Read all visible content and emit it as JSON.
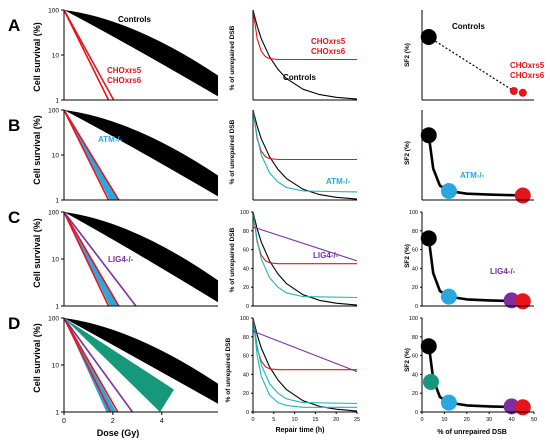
{
  "figure": {
    "rows": [
      {
        "letter": "A",
        "survival_label": "Cell survival (%)",
        "dsb_label": "% of unrepaired DSB",
        "sf2_label": "SF2 (%)"
      },
      {
        "letter": "B",
        "survival_label": "Cell survival (%)",
        "dsb_label": "% of unrepaired DSB",
        "sf2_label": "SF2 (%)"
      },
      {
        "letter": "C",
        "survival_label": "Cell survival (%)",
        "dsb_label": "% of unrepaired DSB",
        "sf2_label": "SF2 (%)"
      },
      {
        "letter": "D",
        "survival_label": "Cell survival (%)",
        "dsb_label": "% of unrepaired DSB",
        "sf2_label": "SF2 (%)"
      }
    ],
    "bottom_xlabels": {
      "survival": "Dose (Gy)",
      "dsb": "Repair time (h)",
      "sf2": "% of unrepaired DSB"
    },
    "labels": {
      "controls": "Controls",
      "chox_a": "CHOxrs5",
      "chox_b": "CHOxrs6",
      "atm": "ATM-/-",
      "lig4": "LIG4-/-"
    },
    "colors": {
      "controls": "#000000",
      "chox": "#e8141c",
      "atm": "#29a8e0",
      "atm_line": "#1fb5b5",
      "lig4": "#7b2fa0",
      "green": "#16987a",
      "black_dot": "#000000"
    }
  },
  "chart_data": [
    {
      "panel": "A-survival",
      "type": "line",
      "yscale": "log",
      "ylim": [
        1,
        100
      ],
      "yticks": [
        1,
        10,
        100
      ],
      "xticks": [],
      "ylabel": "Cell survival (%)",
      "series": [
        {
          "name": "Controls",
          "kind": "band",
          "x": [
            0,
            4.5
          ],
          "y_low": [
            100,
            1.2
          ],
          "y_high": [
            100,
            3.5
          ]
        },
        {
          "name": "CHOxrs5",
          "kind": "line",
          "x": [
            0,
            1.3
          ],
          "y": [
            100,
            1
          ]
        },
        {
          "name": "CHOxrs6",
          "kind": "line",
          "x": [
            0,
            1.45
          ],
          "y": [
            100,
            1
          ]
        }
      ]
    },
    {
      "panel": "A-dsb",
      "type": "line",
      "xlim": [
        0,
        25
      ],
      "ylim": [
        0,
        100
      ],
      "yticks": [],
      "xticks": [],
      "ylabel": "% of unrepaired DSB",
      "series": [
        {
          "name": "Controls",
          "x": [
            0,
            1,
            2,
            4,
            6,
            8,
            12,
            16,
            20,
            25
          ],
          "y": [
            100,
            82,
            68,
            48,
            34,
            24,
            12,
            6,
            3,
            1
          ]
        },
        {
          "name": "CHOxrs5 CHOxrs6",
          "x": [
            0,
            1,
            2,
            3,
            4,
            6,
            10,
            25
          ],
          "y": [
            100,
            68,
            54,
            48,
            46,
            45,
            45,
            45
          ]
        }
      ]
    },
    {
      "panel": "A-sf2",
      "type": "scatter",
      "xlim": [
        0,
        50
      ],
      "ylim": [
        0,
        100
      ],
      "yticks": [],
      "xticks": [],
      "ylabel": "SF2 (%)",
      "points": [
        {
          "name": "Controls",
          "x": 3,
          "y": 70
        },
        {
          "name": "CHOxrs5",
          "x": 41,
          "y": 10
        },
        {
          "name": "CHOxrs6",
          "x": 45,
          "y": 8
        }
      ]
    },
    {
      "panel": "B-survival",
      "type": "line",
      "yscale": "log",
      "ylim": [
        1,
        100
      ],
      "yticks": [
        1,
        10,
        100
      ],
      "xticks": [],
      "ylabel": "Cell survival (%)",
      "series": [
        {
          "name": "Controls",
          "kind": "band",
          "x": [
            0,
            4.5
          ],
          "y_low": [
            100,
            1.2
          ],
          "y_high": [
            100,
            3.5
          ]
        },
        {
          "name": "ATM-/-",
          "kind": "fan",
          "x": [
            0,
            1.6
          ],
          "y": [
            100,
            1
          ]
        },
        {
          "name": "CHOxrs5",
          "kind": "line",
          "x": [
            0,
            1.3
          ],
          "y": [
            100,
            1
          ]
        },
        {
          "name": "CHOxrs6",
          "kind": "line",
          "x": [
            0,
            1.6
          ],
          "y": [
            100,
            1
          ]
        }
      ]
    },
    {
      "panel": "B-dsb",
      "type": "line",
      "xlim": [
        0,
        25
      ],
      "ylim": [
        0,
        100
      ],
      "yticks": [],
      "xticks": [],
      "ylabel": "% of unrepaired DSB",
      "series": [
        {
          "name": "Controls",
          "x": [
            0,
            1,
            2,
            4,
            6,
            8,
            12,
            16,
            20,
            25
          ],
          "y": [
            100,
            82,
            68,
            48,
            34,
            24,
            12,
            6,
            3,
            1
          ]
        },
        {
          "name": "CHOxrs5 CHOxrs6",
          "x": [
            0,
            1,
            2,
            3,
            4,
            6,
            10,
            25
          ],
          "y": [
            100,
            68,
            54,
            48,
            46,
            45,
            45,
            45
          ]
        },
        {
          "name": "ATM-/-",
          "x": [
            0,
            1,
            2,
            4,
            6,
            8,
            12,
            25
          ],
          "y": [
            100,
            70,
            50,
            30,
            20,
            14,
            10,
            9
          ]
        }
      ]
    },
    {
      "panel": "B-sf2",
      "type": "scatter",
      "xlim": [
        0,
        50
      ],
      "ylim": [
        0,
        100
      ],
      "yticks": [],
      "xticks": [],
      "ylabel": "SF2 (%)",
      "curve": {
        "x": [
          3,
          5,
          8,
          12,
          20,
          30,
          45
        ],
        "y": [
          72,
          35,
          16,
          10,
          7,
          6,
          5
        ]
      },
      "points": [
        {
          "name": "Controls",
          "x": 3,
          "y": 72
        },
        {
          "name": "ATM-/-",
          "x": 12,
          "y": 10
        },
        {
          "name": "CHOxrs",
          "x": 45,
          "y": 5
        }
      ]
    },
    {
      "panel": "C-survival",
      "type": "line",
      "yscale": "log",
      "ylim": [
        1,
        100
      ],
      "yticks": [
        1,
        10,
        100
      ],
      "xticks": [],
      "ylabel": "Cell survival (%)",
      "series": [
        {
          "name": "Controls",
          "kind": "band",
          "x": [
            0,
            4.5
          ],
          "y_low": [
            100,
            1.2
          ],
          "y_high": [
            100,
            3.5
          ]
        },
        {
          "name": "ATM-/-",
          "kind": "fan",
          "x": [
            0,
            1.6
          ],
          "y": [
            100,
            1
          ]
        },
        {
          "name": "CHOxrs5",
          "kind": "line",
          "x": [
            0,
            1.3
          ],
          "y": [
            100,
            1
          ]
        },
        {
          "name": "CHOxrs6",
          "kind": "line",
          "x": [
            0,
            1.6
          ],
          "y": [
            100,
            1
          ]
        },
        {
          "name": "LIG4-/-",
          "kind": "line",
          "x": [
            0,
            2.1
          ],
          "y": [
            100,
            1
          ]
        }
      ]
    },
    {
      "panel": "C-dsb",
      "type": "line",
      "xlim": [
        0,
        25
      ],
      "ylim": [
        0,
        100
      ],
      "yticks": [
        0,
        20,
        40,
        60,
        80,
        100
      ],
      "xticks": [],
      "ylabel": "% of unrepaired DSB",
      "series": [
        {
          "name": "Controls",
          "x": [
            0,
            1,
            2,
            4,
            6,
            8,
            12,
            16,
            20,
            25
          ],
          "y": [
            100,
            82,
            68,
            48,
            34,
            24,
            12,
            6,
            3,
            1
          ]
        },
        {
          "name": "CHOxrs5 CHOxrs6",
          "x": [
            0,
            1,
            2,
            3,
            4,
            6,
            10,
            25
          ],
          "y": [
            100,
            68,
            54,
            48,
            46,
            45,
            45,
            45
          ]
        },
        {
          "name": "ATM-/-",
          "x": [
            0,
            1,
            2,
            4,
            6,
            8,
            12,
            25
          ],
          "y": [
            100,
            70,
            50,
            30,
            20,
            14,
            10,
            9
          ]
        },
        {
          "name": "LIG4-/-",
          "x": [
            0,
            25
          ],
          "y": [
            84,
            48
          ]
        }
      ]
    },
    {
      "panel": "C-sf2",
      "type": "scatter",
      "xlim": [
        0,
        50
      ],
      "ylim": [
        0,
        100
      ],
      "yticks": [
        0,
        20,
        40,
        60,
        80,
        100
      ],
      "xticks": [],
      "ylabel": "SF2 (%)",
      "curve": {
        "x": [
          3,
          5,
          8,
          12,
          20,
          30,
          45
        ],
        "y": [
          72,
          35,
          16,
          10,
          7,
          6,
          5
        ]
      },
      "points": [
        {
          "name": "Controls",
          "x": 3,
          "y": 72
        },
        {
          "name": "ATM-/-",
          "x": 12,
          "y": 10
        },
        {
          "name": "LIG4-/-",
          "x": 40,
          "y": 6
        },
        {
          "name": "CHOxrs",
          "x": 45,
          "y": 5
        }
      ]
    },
    {
      "panel": "D-survival",
      "type": "line",
      "yscale": "log",
      "ylim": [
        1,
        100
      ],
      "yticks": [
        1,
        10,
        100
      ],
      "xticks": [
        0,
        2,
        4
      ],
      "xlabel": "Dose (Gy)",
      "ylabel": "Cell survival (%)",
      "series": [
        {
          "name": "Controls",
          "kind": "band",
          "x": [
            0,
            6.3
          ],
          "y_low": [
            100,
            1.5
          ],
          "y_high": [
            100,
            4
          ]
        },
        {
          "name": "green",
          "kind": "wedge",
          "x": [
            0,
            4.5
          ],
          "y_low": [
            100,
            1
          ],
          "y_high": [
            100,
            3
          ]
        },
        {
          "name": "ATM-/-",
          "kind": "fan",
          "x": [
            0,
            2.1
          ],
          "y": [
            100,
            1
          ]
        },
        {
          "name": "CHOxrs5",
          "kind": "line",
          "x": [
            0,
            1.9
          ],
          "y": [
            100,
            1
          ]
        },
        {
          "name": "CHOxrs6",
          "kind": "line",
          "x": [
            0,
            2.2
          ],
          "y": [
            100,
            1
          ]
        },
        {
          "name": "LIG4-/-",
          "kind": "line",
          "x": [
            0,
            2.8
          ],
          "y": [
            100,
            1
          ]
        }
      ]
    },
    {
      "panel": "D-dsb",
      "type": "line",
      "xlim": [
        0,
        25
      ],
      "ylim": [
        0,
        100
      ],
      "yticks": [
        0,
        20,
        40,
        60,
        80,
        100
      ],
      "xticks": [
        0,
        5,
        10,
        15,
        20,
        25
      ],
      "xlabel": "Repair time (h)",
      "ylabel": "% of unrepaired DSB",
      "series": [
        {
          "name": "Controls",
          "x": [
            0,
            1,
            2,
            4,
            6,
            8,
            12,
            16,
            20,
            25
          ],
          "y": [
            100,
            82,
            68,
            48,
            34,
            24,
            12,
            6,
            3,
            1
          ]
        },
        {
          "name": "CHOxrs5 CHOxrs6",
          "x": [
            0,
            1,
            2,
            3,
            4,
            6,
            10,
            25
          ],
          "y": [
            100,
            68,
            54,
            48,
            46,
            45,
            45,
            45
          ]
        },
        {
          "name": "ATM-/-",
          "x": [
            0,
            1,
            2,
            4,
            6,
            8,
            12,
            25
          ],
          "y": [
            100,
            70,
            50,
            30,
            20,
            14,
            10,
            9
          ]
        },
        {
          "name": "ATM-/- 2",
          "x": [
            0,
            1,
            2,
            4,
            6,
            8,
            12,
            25
          ],
          "y": [
            100,
            60,
            38,
            18,
            10,
            7,
            5,
            5
          ]
        },
        {
          "name": "LIG4-/-",
          "x": [
            0,
            25
          ],
          "y": [
            86,
            43
          ]
        }
      ]
    },
    {
      "panel": "D-sf2",
      "type": "scatter",
      "xlim": [
        0,
        50
      ],
      "ylim": [
        0,
        100
      ],
      "yticks": [
        0,
        20,
        40,
        60,
        80,
        100
      ],
      "xticks": [
        0,
        10,
        20,
        30,
        40,
        50
      ],
      "xlabel": "% of unrepaired DSB",
      "ylabel": "SF2 (%)",
      "curve": {
        "x": [
          3,
          5,
          8,
          12,
          20,
          30,
          45
        ],
        "y": [
          72,
          35,
          16,
          10,
          7,
          6,
          5
        ]
      },
      "points": [
        {
          "name": "Controls",
          "x": 3,
          "y": 70
        },
        {
          "name": "green",
          "x": 4,
          "y": 32
        },
        {
          "name": "ATM-/-",
          "x": 12,
          "y": 10
        },
        {
          "name": "LIG4-/-",
          "x": 40,
          "y": 6
        },
        {
          "name": "CHOxrs",
          "x": 45,
          "y": 5
        }
      ]
    }
  ]
}
